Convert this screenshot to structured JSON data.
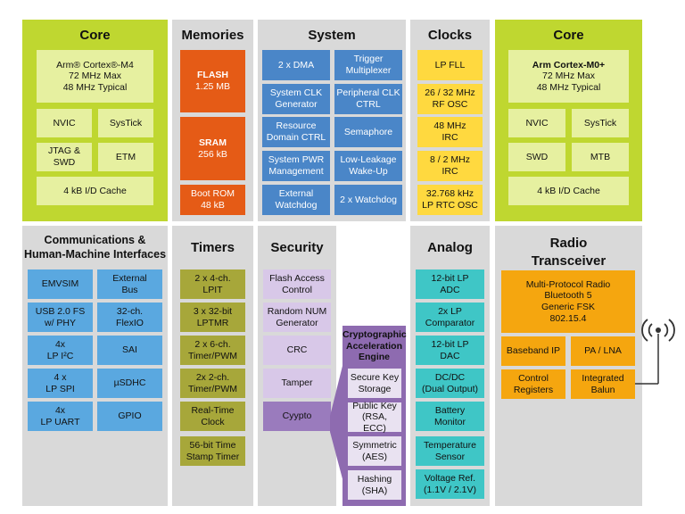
{
  "core_m4": {
    "title": "Core",
    "cpu_name": "Arm® Cortex®-M4",
    "cpu_freq_max": "72 MHz Max",
    "cpu_freq_typ": "48 MHz Typical",
    "blocks": [
      "NVIC",
      "SysTick",
      "JTAG & SWD",
      "ETM"
    ],
    "cache": "4 kB I/D Cache"
  },
  "memories": {
    "title": "Memories",
    "flash_label": "FLASH",
    "flash_size": "1.25 MB",
    "sram_label": "SRAM",
    "sram_size": "256 kB",
    "bootrom": "Boot ROM\n48 kB"
  },
  "system": {
    "title": "System",
    "blocks": [
      "2 x DMA",
      "Trigger\nMultiplexer",
      "System CLK\nGenerator",
      "Peripheral CLK\nCTRL",
      "Resource\nDomain CTRL",
      "Semaphore",
      "System PWR\nManagement",
      "Low-Leakage\nWake-Up",
      "External\nWatchdog",
      "2 x Watchdog"
    ]
  },
  "clocks": {
    "title": "Clocks",
    "blocks": [
      "LP FLL",
      "26 / 32 MHz\nRF OSC",
      "48 MHz\nIRC",
      "8 / 2 MHz\nIRC",
      "32.768 kHz\nLP RTC OSC"
    ]
  },
  "core_m0": {
    "title": "Core",
    "cpu_name": "Arm Cortex-M0+",
    "cpu_freq_max": "72 MHz Max",
    "cpu_freq_typ": "48 MHz Typical",
    "blocks": [
      "NVIC",
      "SysTick",
      "SWD",
      "MTB"
    ],
    "cache": "4 kB I/D Cache"
  },
  "comms": {
    "title": "Communications &\nHuman-Machine Interfaces",
    "blocks": [
      "EMVSIM",
      "External\nBus",
      "USB 2.0 FS\nw/ PHY",
      "32-ch.\nFlexIO",
      "4x\nLP I²C",
      "SAI",
      "4 x\nLP SPI",
      "µSDHC",
      "4x\nLP UART",
      "GPIO"
    ]
  },
  "timers": {
    "title": "Timers",
    "blocks": [
      "2 x 4-ch.\nLPIT",
      "3 x 32-bit\nLPTMR",
      "2 x 6-ch.\nTimer/PWM",
      "2x 2-ch.\nTimer/PWM",
      "Real-Time\nClock",
      "56-bit Time\nStamp Timer"
    ]
  },
  "security": {
    "title": "Security",
    "blocks": [
      "Flash Access\nControl",
      "Random NUM\nGenerator",
      "CRC",
      "Tamper",
      "Cyypto"
    ]
  },
  "crypto": {
    "title": "Cryptographic\nAcceleration\nEngine",
    "blocks": [
      "Secure Key\nStorage",
      "Public Key\n(RSA, ECC)",
      "Symmetric\n(AES)",
      "Hashing\n(SHA)"
    ]
  },
  "analog": {
    "title": "Analog",
    "blocks": [
      "12-bit LP\nADC",
      "2x LP\nComparator",
      "12-bit LP\nDAC",
      "DC/DC\n(Dual Output)",
      "Battery\nMonitor",
      "Temperature\nSensor",
      "Voltage Ref.\n(1.1V / 2.1V)"
    ]
  },
  "radio": {
    "title": "Radio\nTransceiver",
    "main": "Multi-Protocol Radio\nBluetooth 5\nGeneric FSK\n802.15.4",
    "blocks": [
      "Baseband IP",
      "PA / LNA",
      "Control\nRegisters",
      "Integrated\nBalun"
    ]
  },
  "colors": {
    "green": "#bfd730",
    "gray": "#d9d9d9",
    "orange": "#e55b16",
    "blue": "#4a86c8",
    "yellow": "#ffd93f",
    "olive": "#a7a73a",
    "teal": "#3fc6c6",
    "amber": "#f5a60f",
    "purple": "#8e6bb0"
  }
}
